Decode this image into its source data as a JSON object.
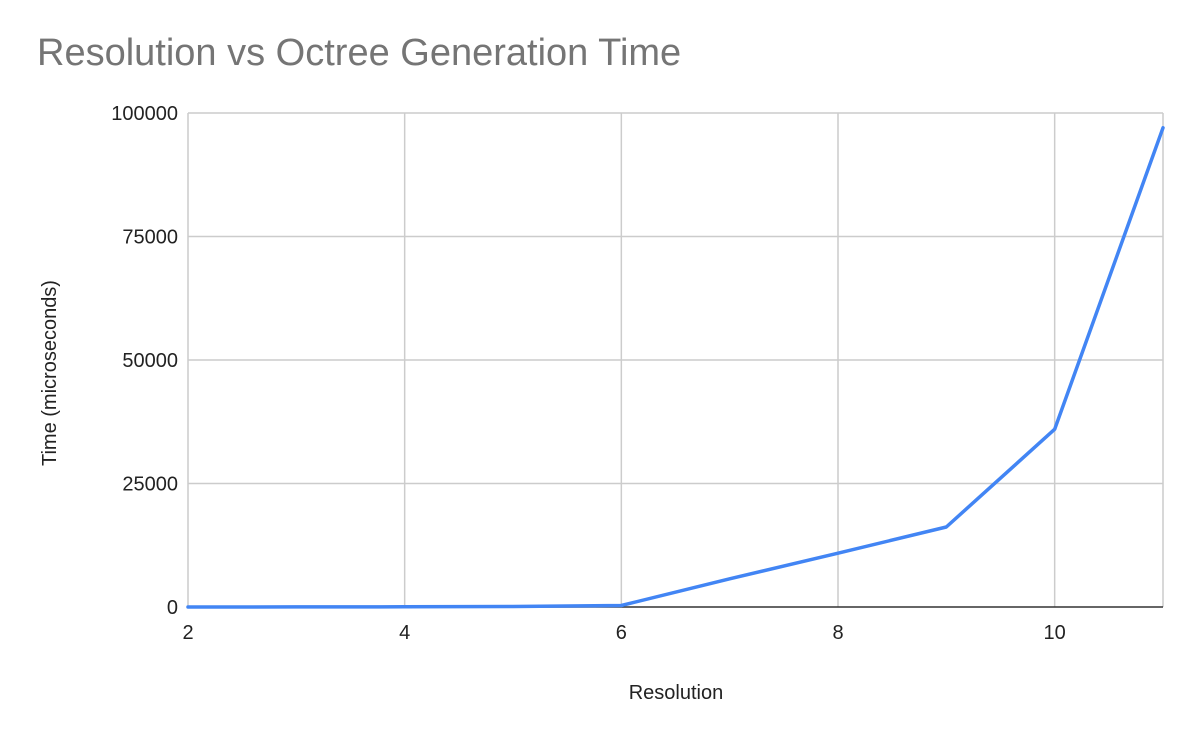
{
  "chart_data": {
    "type": "line",
    "title": "Resolution vs Octree Generation Time",
    "xlabel": "Resolution",
    "ylabel": "Time (microseconds)",
    "xlim": [
      2,
      11
    ],
    "ylim": [
      0,
      100000
    ],
    "x_ticks": [
      2,
      4,
      6,
      8,
      10
    ],
    "x_tick_labels": [
      "2",
      "4",
      "6",
      "8",
      "10"
    ],
    "y_ticks": [
      0,
      25000,
      50000,
      75000,
      100000
    ],
    "y_tick_labels": [
      "0",
      "25000",
      "50000",
      "75000",
      "100000"
    ],
    "grid": true,
    "legend": "none",
    "series": [
      {
        "color": "#4285F4",
        "x": [
          2,
          3,
          4,
          5,
          6,
          7,
          8,
          9,
          10,
          11
        ],
        "y": [
          10,
          20,
          50,
          100,
          300,
          5700,
          10900,
          16200,
          36000,
          97000
        ]
      }
    ]
  }
}
